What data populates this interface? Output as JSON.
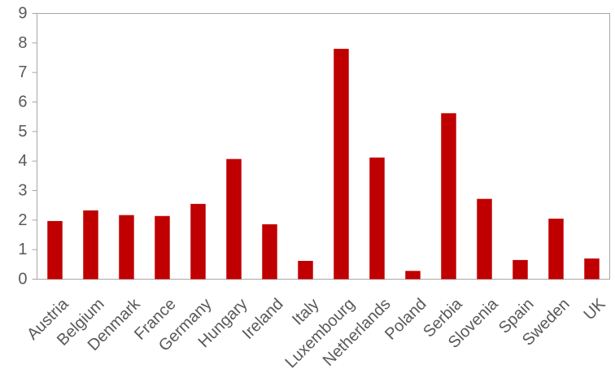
{
  "chart_data": {
    "type": "bar",
    "categories": [
      "Austria",
      "Belgium",
      "Denmark",
      "France",
      "Germany",
      "Hungary",
      "Ireland",
      "Italy",
      "Luxembourg",
      "Netherlands",
      "Poland",
      "Serbia",
      "Slovenia",
      "Spain",
      "Sweden",
      "UK"
    ],
    "values": [
      1.97,
      2.33,
      2.17,
      2.14,
      2.55,
      4.07,
      1.86,
      0.62,
      7.8,
      4.12,
      0.28,
      5.62,
      2.72,
      0.65,
      2.05,
      0.7
    ],
    "ylim": [
      0,
      9
    ],
    "yticks": [
      0,
      1,
      2,
      3,
      4,
      5,
      6,
      7,
      8,
      9
    ],
    "bar_color": "#C00000",
    "axis_color": "#A6A6A6",
    "grid": false,
    "legend": "none"
  }
}
